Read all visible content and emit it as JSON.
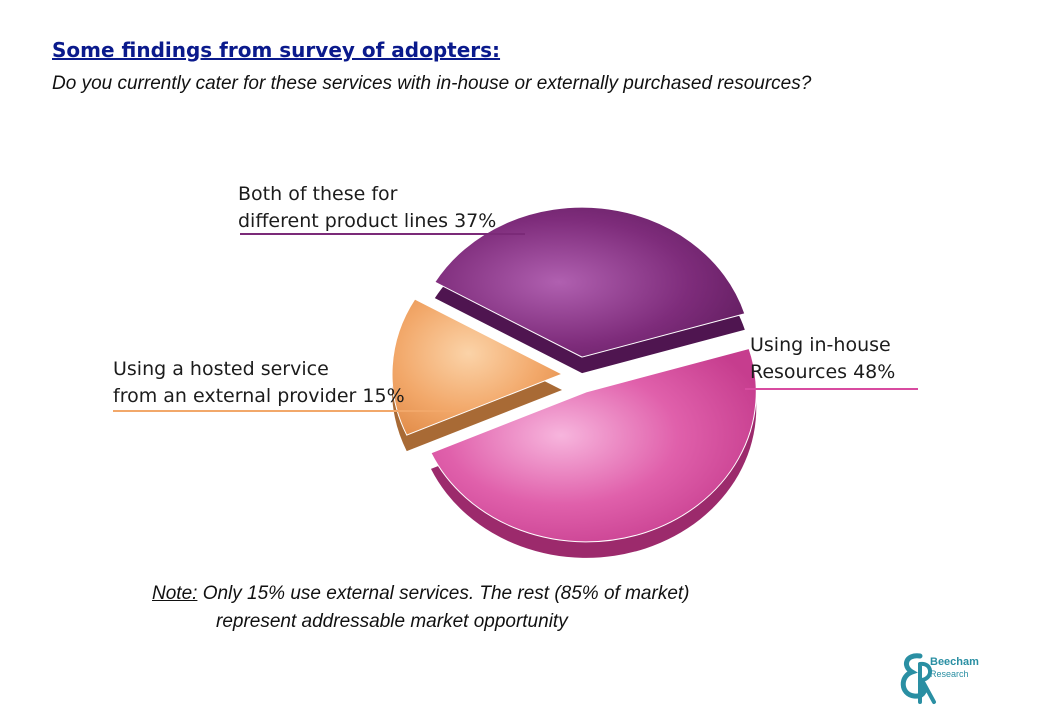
{
  "header": {
    "title": "Some findings from survey of adopters:",
    "question": "Do you currently cater for these services with in-house or externally purchased resources?"
  },
  "chart_data": {
    "type": "pie",
    "title": "",
    "slices": [
      {
        "label": "Both of these for different product lines",
        "value": 37,
        "color": "#7b2a78"
      },
      {
        "label": "Using in-house Resources",
        "value": 48,
        "color": "#d84ba0"
      },
      {
        "label": "Using a hosted service from an external provider",
        "value": 15,
        "color": "#f2a86a"
      }
    ],
    "labels": {
      "both_line1": "Both of these for",
      "both_line2": "different product lines 37%",
      "inhouse_line1": "Using in-house",
      "inhouse_line2": "Resources 48%",
      "hosted_line1": "Using a hosted service",
      "hosted_line2": "from an external provider 15%"
    },
    "underline_colors": {
      "both": "#7b2a78",
      "inhouse": "#d84ba0",
      "hosted": "#f2a86a"
    }
  },
  "note": {
    "prefix": "Note:",
    "line1": " Only 15% use external services. The rest (85% of market)",
    "line2": "represent addressable market opportunity"
  },
  "logo": {
    "line1": "Beecham",
    "line2": "Research",
    "color": "#2a8fa3"
  }
}
